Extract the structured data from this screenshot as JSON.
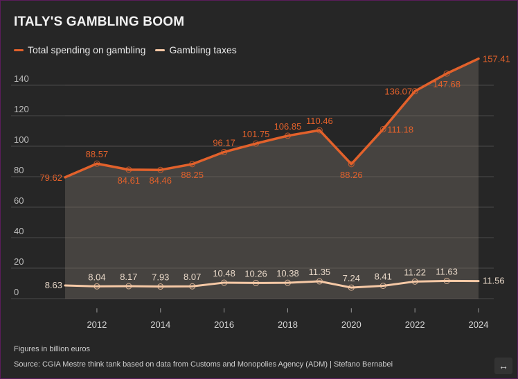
{
  "title": "ITALY'S GAMBLING BOOM",
  "colors": {
    "spending": "#e2612b",
    "taxes": "#f6c9a6",
    "grid": "#4a4a4a",
    "label_spending": "#e2612b",
    "label_taxes": "#e8d8c8"
  },
  "legend": [
    {
      "label": "Total spending on gambling",
      "color": "#e2612b"
    },
    {
      "label": "Gambling taxes",
      "color": "#f6c9a6"
    }
  ],
  "note": "Figures in billion euros",
  "source": "Source: CGIA Mestre think tank based on data from Customs and Monopolies Agency (ADM) | Stefano Bernabei",
  "expand_icon": "↔",
  "chart_data": {
    "type": "line",
    "title": "ITALY'S GAMBLING BOOM",
    "xlabel": "",
    "ylabel": "",
    "x": [
      2011,
      2012,
      2013,
      2014,
      2015,
      2016,
      2017,
      2018,
      2019,
      2020,
      2021,
      2022,
      2023,
      2024
    ],
    "xticks": [
      "2012",
      "2014",
      "2016",
      "2018",
      "2020",
      "2022",
      "2024"
    ],
    "yticks": [
      "0",
      "20",
      "40",
      "60",
      "80",
      "100",
      "120",
      "140"
    ],
    "ylim": [
      0,
      160
    ],
    "grid": true,
    "legend_position": "top-left",
    "series": [
      {
        "name": "Total spending on gambling",
        "values": [
          79.62,
          88.57,
          84.61,
          84.46,
          88.25,
          96.17,
          101.75,
          106.85,
          110.46,
          88.26,
          111.18,
          136.07,
          147.68,
          157.41
        ],
        "labels": [
          "79.62",
          "88.57",
          "84.61",
          "84.46",
          "88.25",
          "96.17",
          "101.75",
          "106.85",
          "110.46",
          "88.26",
          "111.18",
          "136.07",
          "147.68",
          "157.41"
        ]
      },
      {
        "name": "Gambling taxes",
        "values": [
          8.63,
          8.04,
          8.17,
          7.93,
          8.07,
          10.48,
          10.26,
          10.38,
          11.35,
          7.24,
          8.41,
          11.22,
          11.63,
          11.56
        ],
        "labels": [
          "8.63",
          "8.04",
          "8.17",
          "7.93",
          "8.07",
          "10.48",
          "10.26",
          "10.38",
          "11.35",
          "7.24",
          "8.41",
          "11.22",
          "11.63",
          "11.56"
        ]
      }
    ]
  }
}
